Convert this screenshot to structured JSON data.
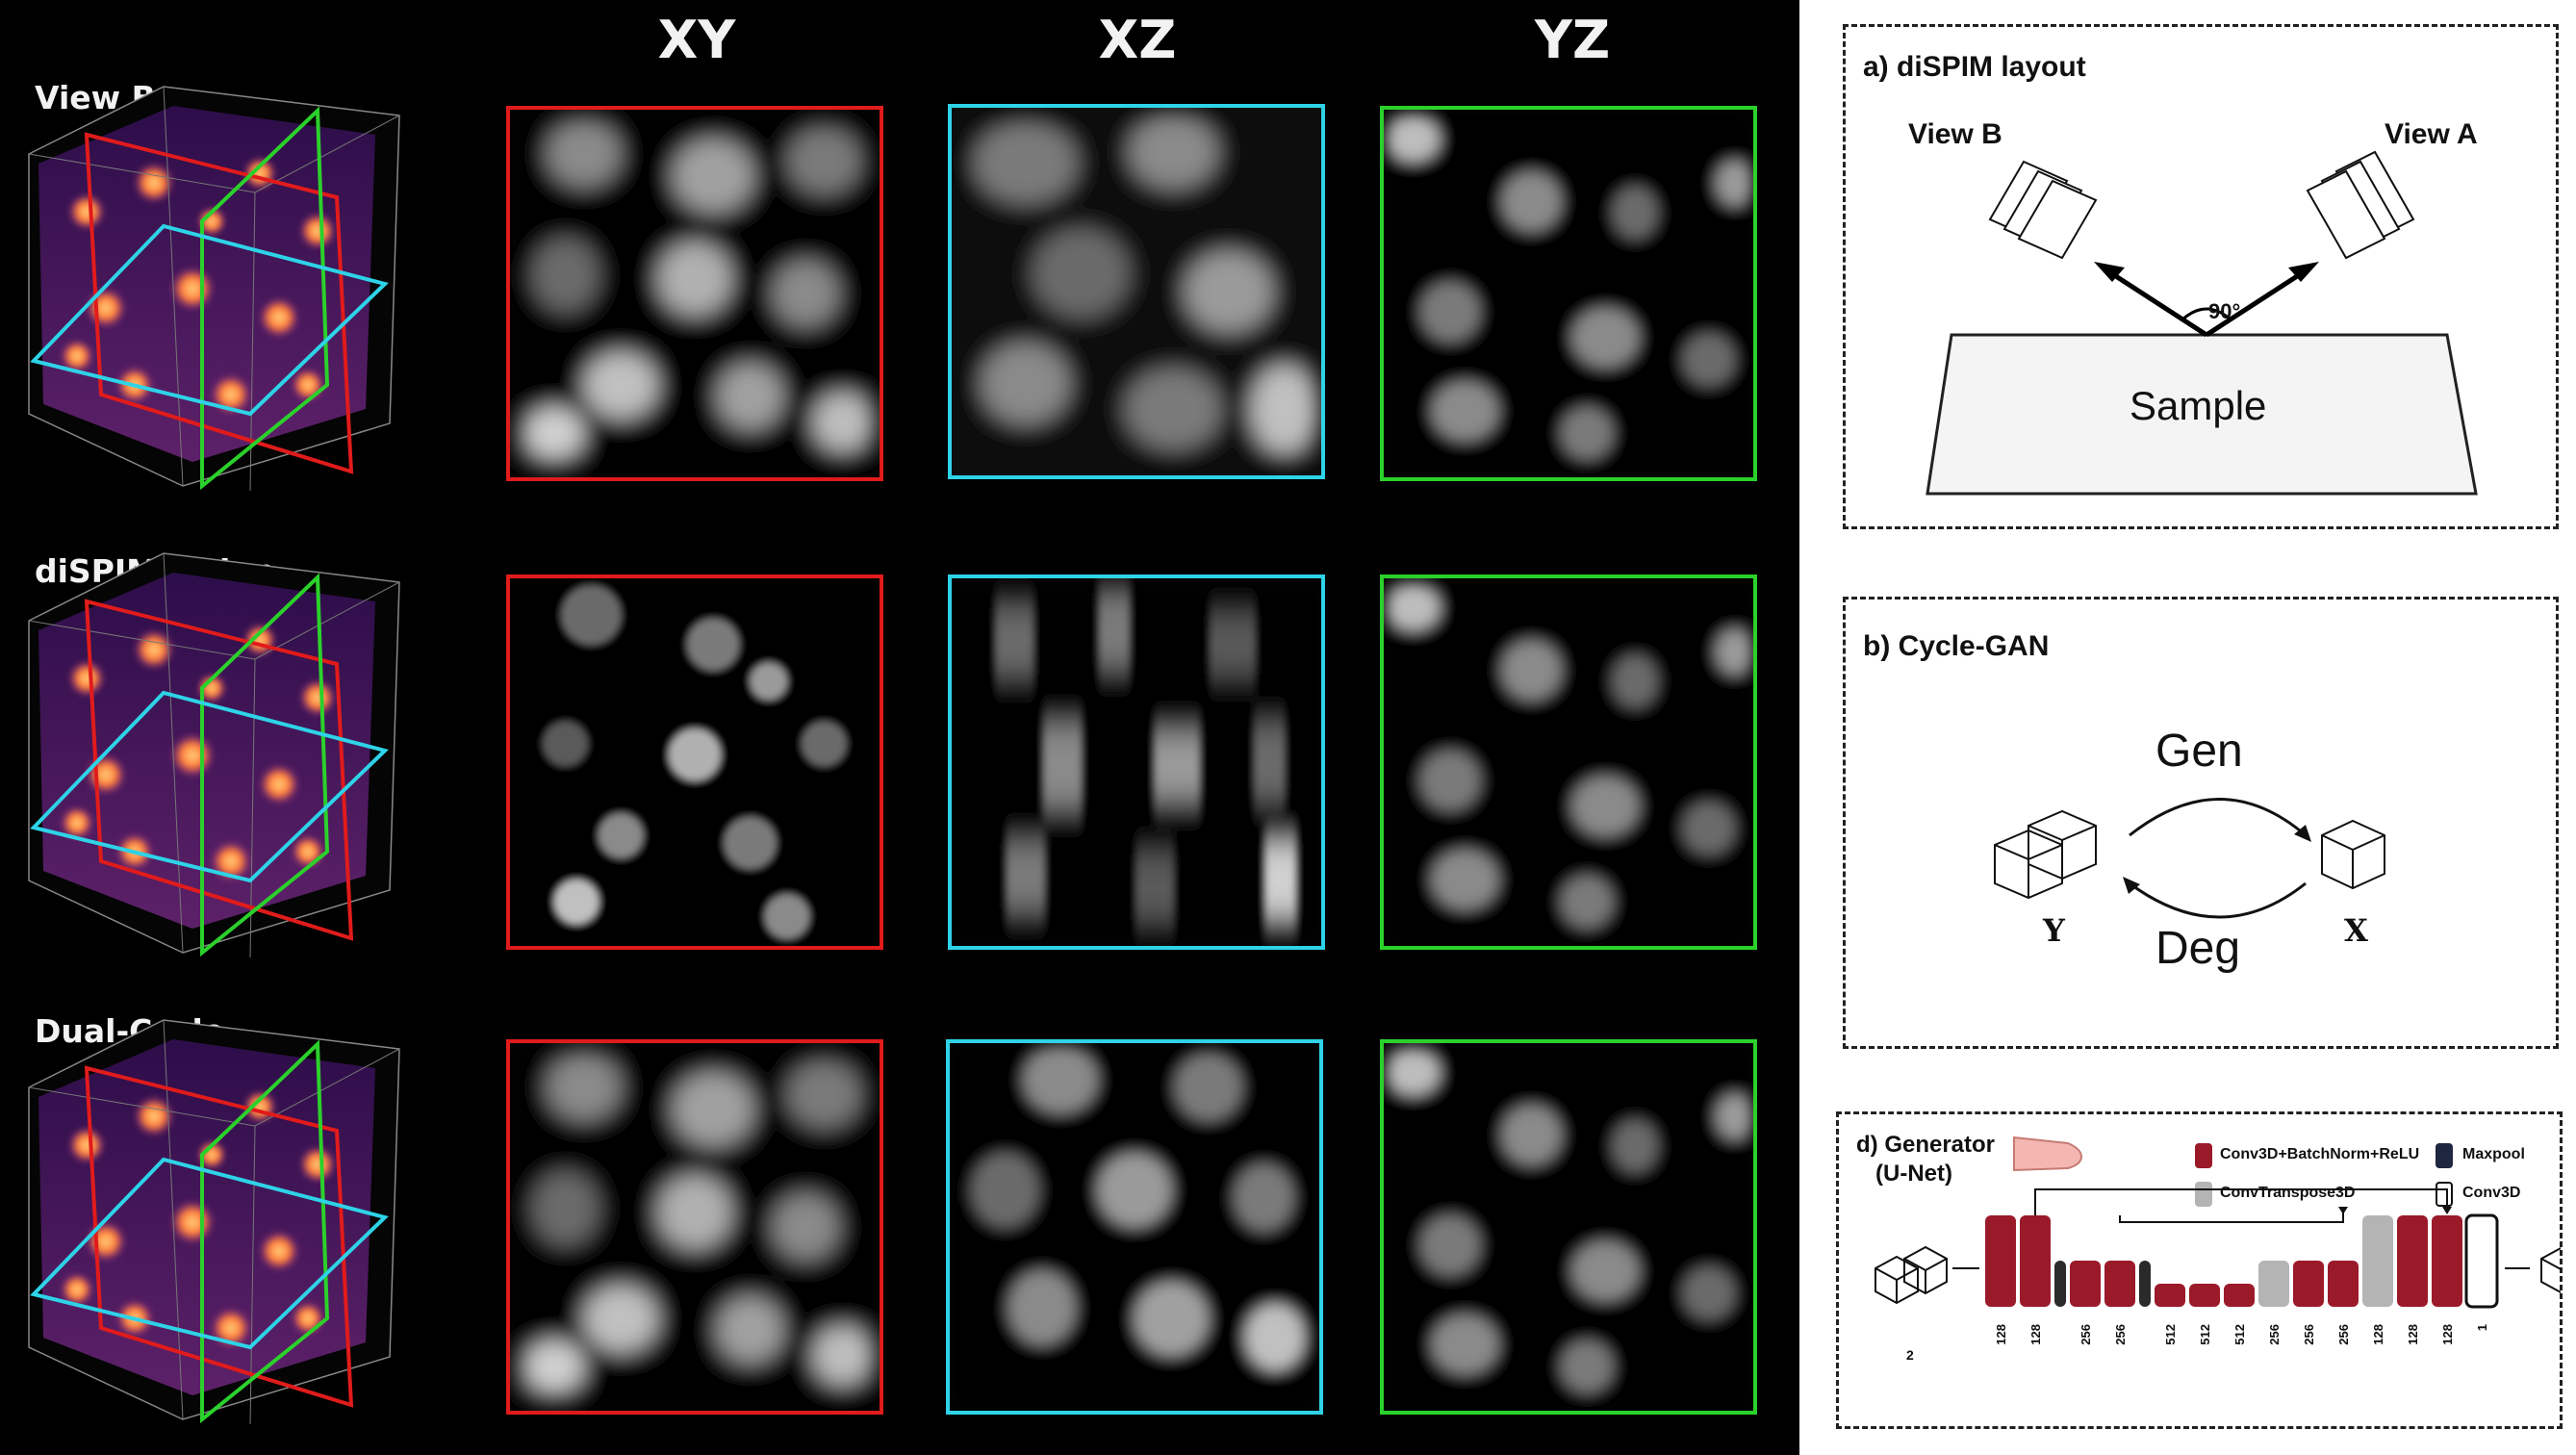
{
  "columns": [
    "XY",
    "XZ",
    "YZ"
  ],
  "rows": [
    "View B",
    "diSPIMFusion",
    "Dual-Cycle"
  ],
  "colors": {
    "xy_frame": "#e11b1b",
    "xz_frame": "#2ed3e8",
    "yz_frame": "#2bd12b",
    "volume": "#6a2a9a",
    "nuclei": "#ff9a4a"
  },
  "panel_a": {
    "title": "a) diSPIM layout",
    "view_b": "View B",
    "view_a": "View A",
    "angle": "90°",
    "sample": "Sample"
  },
  "panel_b": {
    "title": "b) Cycle-GAN",
    "gen": "Gen",
    "deg": "Deg",
    "y": "Y",
    "x": "X"
  },
  "panel_d": {
    "title_line1": "d) Generator",
    "title_line2": "(U-Net)",
    "legend": {
      "conv_bn_relu": "Conv3D+BatchNorm+ReLU",
      "maxpool": "Maxpool",
      "conv_transpose": "ConvTranspose3D",
      "conv3d": "Conv3D"
    },
    "layers": [
      {
        "type": "input",
        "label": "2"
      },
      {
        "type": "conv",
        "label": "128"
      },
      {
        "type": "conv",
        "label": "128"
      },
      {
        "type": "pool",
        "label": ""
      },
      {
        "type": "conv",
        "label": "256"
      },
      {
        "type": "conv",
        "label": "256"
      },
      {
        "type": "pool",
        "label": ""
      },
      {
        "type": "conv",
        "label": "512"
      },
      {
        "type": "conv",
        "label": "512"
      },
      {
        "type": "conv",
        "label": "512"
      },
      {
        "type": "up",
        "label": "256"
      },
      {
        "type": "conv",
        "label": "256"
      },
      {
        "type": "conv",
        "label": "256"
      },
      {
        "type": "up",
        "label": "128"
      },
      {
        "type": "conv",
        "label": "128"
      },
      {
        "type": "conv",
        "label": "128"
      },
      {
        "type": "out",
        "label": "1"
      }
    ]
  }
}
